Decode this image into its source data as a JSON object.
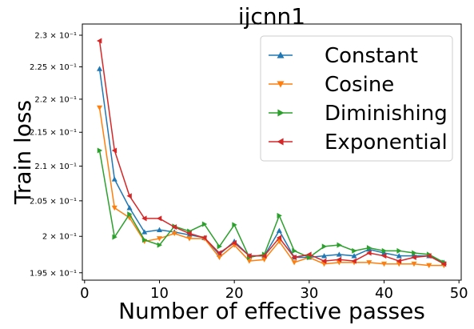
{
  "chart_data": {
    "type": "line",
    "title": "ijcnn1",
    "x_label": "Number of effective passes",
    "y_label": "Train loss",
    "x": [
      2,
      4,
      6,
      8,
      10,
      12,
      14,
      16,
      18,
      20,
      22,
      24,
      26,
      28,
      30,
      32,
      34,
      36,
      38,
      40,
      42,
      44,
      46,
      48
    ],
    "series": [
      {
        "name": "Constant",
        "color": "#1f77b4",
        "marker": "triangle-up",
        "values": [
          0.2247,
          0.2081,
          0.204,
          0.2006,
          0.2009,
          0.2006,
          0.2002,
          0.1998,
          0.1975,
          0.1993,
          0.1973,
          0.1973,
          0.2008,
          0.1971,
          0.1971,
          0.1973,
          0.1975,
          0.1973,
          0.1982,
          0.1977,
          0.1973,
          0.1973,
          0.1973,
          0.1964
        ]
      },
      {
        "name": "Cosine",
        "color": "#ff7f0e",
        "marker": "triangle-down",
        "values": [
          0.2187,
          0.204,
          0.2026,
          0.1993,
          0.1997,
          0.2004,
          0.1997,
          0.1997,
          0.1971,
          0.1988,
          0.1966,
          0.1968,
          0.1993,
          0.1964,
          0.1971,
          0.1962,
          0.1964,
          0.1964,
          0.1964,
          0.1962,
          0.1962,
          0.1962,
          0.196,
          0.196
        ]
      },
      {
        "name": "Diminishing",
        "color": "#2ca02c",
        "marker": "triangle-right",
        "values": [
          0.2123,
          0.1999,
          0.2031,
          0.1995,
          0.1988,
          0.2014,
          0.2007,
          0.2017,
          0.1986,
          0.2016,
          0.1971,
          0.1975,
          0.2029,
          0.198,
          0.1971,
          0.1986,
          0.1988,
          0.198,
          0.1984,
          0.198,
          0.198,
          0.1977,
          0.1975,
          0.1964
        ]
      },
      {
        "name": "Exponential",
        "color": "#d62728",
        "marker": "triangle-left",
        "values": [
          0.2291,
          0.2123,
          0.2057,
          0.2025,
          0.2025,
          0.2013,
          0.2004,
          0.1998,
          0.1977,
          0.1991,
          0.1973,
          0.1973,
          0.1998,
          0.1971,
          0.1975,
          0.1966,
          0.1968,
          0.1966,
          0.1977,
          0.1973,
          0.1966,
          0.1971,
          0.1973,
          0.1962
        ]
      }
    ],
    "xlim": [
      -0.3,
      50.3
    ],
    "xticks": [
      0,
      10,
      20,
      30,
      40,
      50
    ],
    "ylim": [
      0.194,
      0.2318
    ],
    "log_y": true,
    "yticks": [
      {
        "value": 0.195,
        "label": "1.95 × 10⁻¹"
      },
      {
        "value": 0.2,
        "label": "2 × 10⁻¹"
      },
      {
        "value": 0.205,
        "label": "2.05 × 10⁻¹"
      },
      {
        "value": 0.21,
        "label": "2.1 × 10⁻¹"
      },
      {
        "value": 0.215,
        "label": "2.15 × 10⁻¹"
      },
      {
        "value": 0.22,
        "label": "2.2 × 10⁻¹"
      },
      {
        "value": 0.225,
        "label": "2.25 × 10⁻¹"
      },
      {
        "value": 0.23,
        "label": "2.3 × 10⁻¹"
      }
    ],
    "legend": "upper right",
    "grid": false
  }
}
